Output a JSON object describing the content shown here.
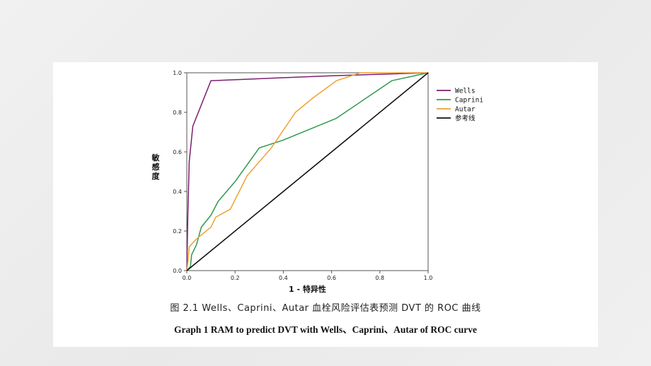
{
  "figure": {
    "caption_cn": "图 2.1 Wells、Caprini、Autar 血栓风险评估表预测 DVT 的 ROC 曲线",
    "caption_en": "Graph 1 RAM to predict DVT with Wells、Caprini、Autar of ROC curve"
  },
  "chart_data": {
    "type": "line",
    "xlabel": "1 - 特异性",
    "ylabel": "敏感度",
    "xlim": [
      0,
      1
    ],
    "ylim": [
      0,
      1
    ],
    "x_ticks": [
      "0.0",
      "0.2",
      "0.4",
      "0.6",
      "0.8",
      "1.0"
    ],
    "y_ticks": [
      "0.0",
      "0.2",
      "0.4",
      "0.6",
      "0.8",
      "1.0"
    ],
    "grid": false,
    "legend_position": "right",
    "series": [
      {
        "name": "Wells",
        "color": "#7b1f6e",
        "points": [
          [
            0,
            0
          ],
          [
            0.004,
            0.27
          ],
          [
            0.01,
            0.55
          ],
          [
            0.025,
            0.73
          ],
          [
            0.1,
            0.96
          ],
          [
            0.6,
            0.985
          ],
          [
            1,
            1
          ]
        ]
      },
      {
        "name": "Caprini",
        "color": "#2f9a4f",
        "points": [
          [
            0,
            0
          ],
          [
            0.015,
            0.02
          ],
          [
            0.02,
            0.08
          ],
          [
            0.04,
            0.13
          ],
          [
            0.06,
            0.22
          ],
          [
            0.1,
            0.28
          ],
          [
            0.13,
            0.35
          ],
          [
            0.2,
            0.45
          ],
          [
            0.3,
            0.62
          ],
          [
            0.4,
            0.66
          ],
          [
            0.62,
            0.77
          ],
          [
            0.85,
            0.96
          ],
          [
            1,
            1
          ]
        ]
      },
      {
        "name": "Autar",
        "color": "#f0a030",
        "points": [
          [
            0,
            0
          ],
          [
            0.005,
            0.05
          ],
          [
            0.01,
            0.12
          ],
          [
            0.04,
            0.16
          ],
          [
            0.1,
            0.22
          ],
          [
            0.12,
            0.27
          ],
          [
            0.18,
            0.31
          ],
          [
            0.25,
            0.48
          ],
          [
            0.35,
            0.62
          ],
          [
            0.45,
            0.8
          ],
          [
            0.52,
            0.87
          ],
          [
            0.62,
            0.96
          ],
          [
            0.72,
            1
          ],
          [
            1,
            1
          ]
        ]
      },
      {
        "name": "参考线",
        "color": "#111111",
        "points": [
          [
            0,
            0
          ],
          [
            1,
            1
          ]
        ]
      }
    ]
  }
}
